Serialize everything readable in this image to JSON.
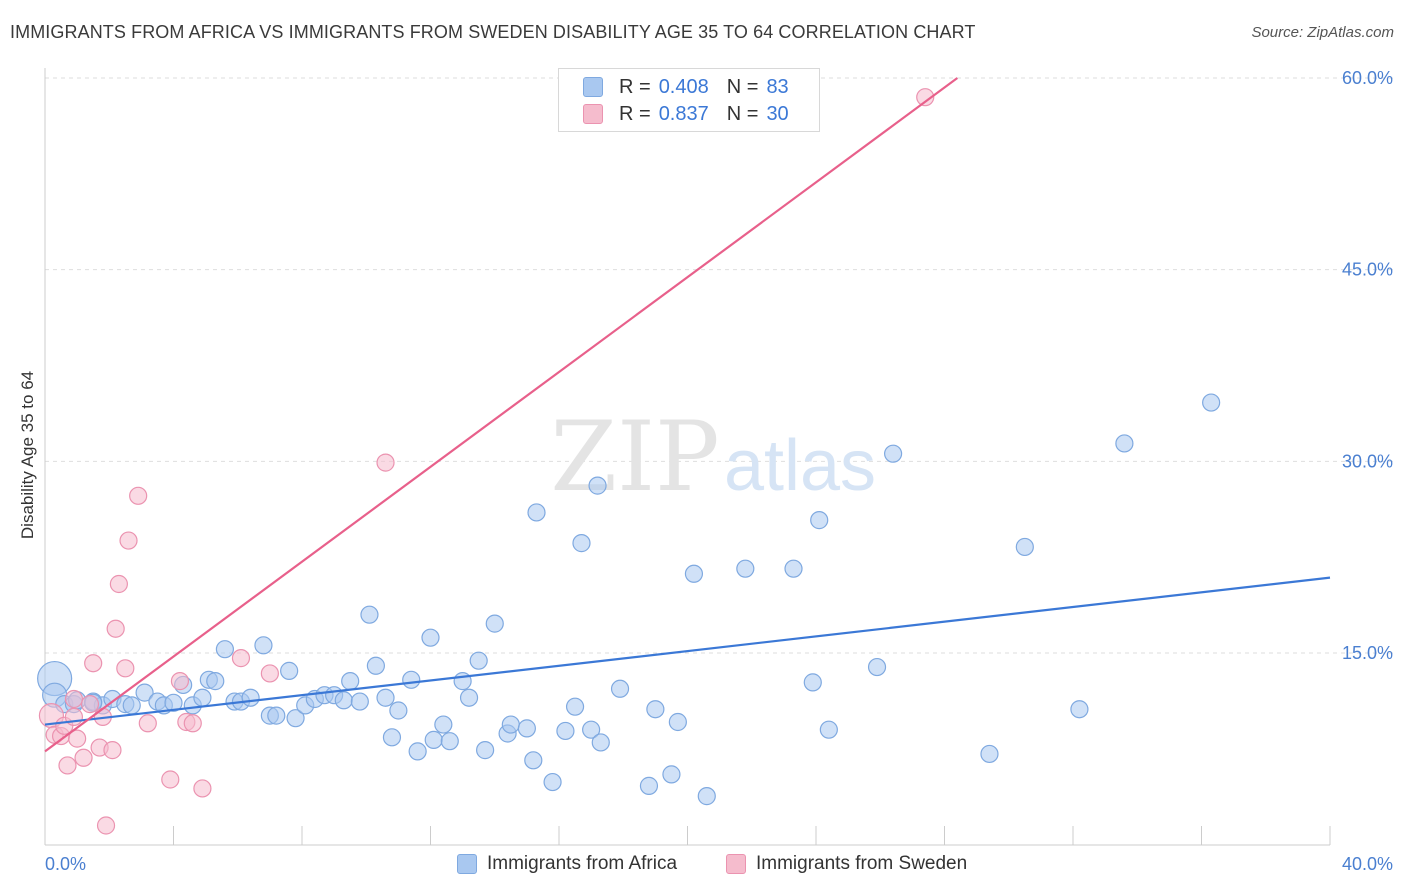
{
  "title": "IMMIGRANTS FROM AFRICA VS IMMIGRANTS FROM SWEDEN DISABILITY AGE 35 TO 64 CORRELATION CHART",
  "source": "Source: ZipAtlas.com",
  "watermark": {
    "zip": "ZIP",
    "atlas": "atlas"
  },
  "legend_stats": [
    {
      "r_label": "R =",
      "r_value": "0.408",
      "n_label": "N =",
      "n_value": "83",
      "color": "#a9c8f0",
      "border": "#7fa9e0"
    },
    {
      "r_label": "R =",
      "r_value": "0.837",
      "n_label": "N =",
      "n_value": "30",
      "color": "#f5bccd",
      "border": "#eb93b0"
    }
  ],
  "chart_data": {
    "type": "scatter",
    "title": "IMMIGRANTS FROM AFRICA VS IMMIGRANTS FROM SWEDEN DISABILITY AGE 35 TO 64 CORRELATION CHART",
    "xlabel": "",
    "ylabel": "Disability Age 35 to 64",
    "xlim": [
      0,
      40
    ],
    "ylim": [
      0,
      60
    ],
    "x_tick_labels": [
      "0.0%",
      "40.0%"
    ],
    "y_ticks": [
      15,
      30,
      45,
      60
    ],
    "y_tick_labels": [
      "15.0%",
      "30.0%",
      "45.0%",
      "60.0%"
    ],
    "grid": true,
    "legend_position": "bottom",
    "series": [
      {
        "name": "Immigrants from Africa",
        "color": "#3b78d6",
        "fill": "#a9c8f0",
        "stroke": "#7fa9e0",
        "trend": [
          [
            0,
            9.4
          ],
          [
            40,
            20.9
          ]
        ],
        "points": [
          [
            0.3,
            13.0,
            3
          ],
          [
            0.3,
            11.7,
            2
          ],
          [
            0.6,
            11.0,
            1
          ],
          [
            0.9,
            11.0,
            1
          ],
          [
            1.0,
            11.3,
            1
          ],
          [
            1.5,
            11.2,
            1
          ],
          [
            1.8,
            10.9,
            1
          ],
          [
            2.1,
            11.4,
            1
          ],
          [
            2.5,
            11.0,
            1
          ],
          [
            2.7,
            10.9,
            1
          ],
          [
            3.1,
            11.9,
            1
          ],
          [
            3.5,
            11.2,
            1
          ],
          [
            3.7,
            10.9,
            1
          ],
          [
            4.0,
            11.1,
            1
          ],
          [
            4.3,
            12.5,
            1
          ],
          [
            4.6,
            10.9,
            1
          ],
          [
            4.9,
            11.5,
            1
          ],
          [
            5.1,
            12.9,
            1
          ],
          [
            5.3,
            12.8,
            1
          ],
          [
            5.6,
            15.3,
            1
          ],
          [
            5.9,
            11.2,
            1
          ],
          [
            6.1,
            11.2,
            1
          ],
          [
            6.4,
            11.5,
            1
          ],
          [
            6.8,
            15.6,
            1
          ],
          [
            7.0,
            10.1,
            1
          ],
          [
            7.2,
            10.1,
            1
          ],
          [
            7.6,
            13.6,
            1
          ],
          [
            7.8,
            9.9,
            1
          ],
          [
            8.1,
            10.9,
            1
          ],
          [
            8.4,
            11.4,
            1
          ],
          [
            8.7,
            11.7,
            1
          ],
          [
            9.0,
            11.7,
            1
          ],
          [
            9.3,
            11.3,
            1
          ],
          [
            9.5,
            12.8,
            1
          ],
          [
            9.8,
            11.2,
            1
          ],
          [
            10.1,
            18.0,
            1
          ],
          [
            10.3,
            14.0,
            1
          ],
          [
            10.6,
            11.5,
            1
          ],
          [
            10.8,
            8.4,
            1
          ],
          [
            11.0,
            10.5,
            1
          ],
          [
            11.4,
            12.9,
            1
          ],
          [
            11.6,
            7.3,
            1
          ],
          [
            12.0,
            16.2,
            1
          ],
          [
            12.1,
            8.2,
            1
          ],
          [
            12.4,
            9.4,
            1
          ],
          [
            12.6,
            8.1,
            1
          ],
          [
            13.0,
            12.8,
            1
          ],
          [
            13.2,
            11.5,
            1
          ],
          [
            13.5,
            14.4,
            1
          ],
          [
            13.7,
            7.4,
            1
          ],
          [
            14.0,
            17.3,
            1
          ],
          [
            14.4,
            8.7,
            1
          ],
          [
            14.5,
            9.4,
            1
          ],
          [
            15.0,
            9.1,
            1
          ],
          [
            15.2,
            6.6,
            1
          ],
          [
            15.3,
            26.0,
            1
          ],
          [
            15.8,
            4.9,
            1
          ],
          [
            16.2,
            8.9,
            1
          ],
          [
            16.5,
            10.8,
            1
          ],
          [
            16.7,
            23.6,
            1
          ],
          [
            17.0,
            9.0,
            1
          ],
          [
            17.2,
            28.1,
            1
          ],
          [
            17.3,
            8.0,
            1
          ],
          [
            17.9,
            12.2,
            1
          ],
          [
            18.8,
            4.6,
            1
          ],
          [
            19.0,
            10.6,
            1
          ],
          [
            19.5,
            5.5,
            1
          ],
          [
            19.7,
            9.6,
            1
          ],
          [
            20.2,
            21.2,
            1
          ],
          [
            20.6,
            3.8,
            1
          ],
          [
            21.8,
            21.6,
            1
          ],
          [
            23.3,
            21.6,
            1
          ],
          [
            23.9,
            12.7,
            1
          ],
          [
            24.1,
            25.4,
            1
          ],
          [
            24.4,
            9.0,
            1
          ],
          [
            25.9,
            13.9,
            1
          ],
          [
            26.4,
            30.6,
            1
          ],
          [
            29.4,
            7.1,
            1
          ],
          [
            30.5,
            23.3,
            1
          ],
          [
            32.2,
            10.6,
            1
          ],
          [
            33.6,
            31.4,
            1
          ],
          [
            36.3,
            34.6,
            1
          ],
          [
            1.5,
            11.1,
            1
          ]
        ]
      },
      {
        "name": "Immigrants from Sweden",
        "color": "#e8608b",
        "fill": "#f5bccd",
        "stroke": "#eb93b0",
        "trend": [
          [
            0,
            7.3
          ],
          [
            28.4,
            60.0
          ]
        ],
        "points": [
          [
            0.2,
            10.1,
            2
          ],
          [
            0.3,
            8.6,
            1
          ],
          [
            0.5,
            8.5,
            1
          ],
          [
            0.6,
            9.3,
            1
          ],
          [
            0.7,
            6.2,
            1
          ],
          [
            0.9,
            10.0,
            1
          ],
          [
            1.0,
            8.3,
            1
          ],
          [
            1.2,
            6.8,
            1
          ],
          [
            1.4,
            11.0,
            1
          ],
          [
            1.5,
            14.2,
            1
          ],
          [
            1.7,
            7.6,
            1
          ],
          [
            1.8,
            10.0,
            1
          ],
          [
            1.9,
            1.5,
            1
          ],
          [
            2.1,
            7.4,
            1
          ],
          [
            2.2,
            16.9,
            1
          ],
          [
            2.3,
            20.4,
            1
          ],
          [
            2.5,
            13.8,
            1
          ],
          [
            2.6,
            23.8,
            1
          ],
          [
            2.9,
            27.3,
            1
          ],
          [
            3.2,
            9.5,
            1
          ],
          [
            3.9,
            5.1,
            1
          ],
          [
            4.2,
            12.8,
            1
          ],
          [
            4.4,
            9.6,
            1
          ],
          [
            4.6,
            9.5,
            1
          ],
          [
            4.9,
            4.4,
            1
          ],
          [
            6.1,
            14.6,
            1
          ],
          [
            7.0,
            13.4,
            1
          ],
          [
            10.6,
            29.9,
            1
          ],
          [
            27.4,
            58.5,
            1
          ],
          [
            0.9,
            11.4,
            1
          ]
        ]
      }
    ]
  }
}
